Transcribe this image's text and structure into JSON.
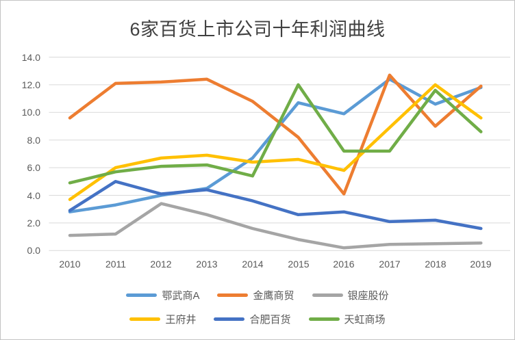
{
  "chart_data": {
    "type": "line",
    "title": "6家百货上市公司十年利润曲线",
    "categories": [
      "2010",
      "2011",
      "2012",
      "2013",
      "2014",
      "2015",
      "2016",
      "2017",
      "2018",
      "2019"
    ],
    "series": [
      {
        "name": "鄂武商A",
        "color": "#5B9BD5",
        "values": [
          2.8,
          3.3,
          4.0,
          4.5,
          6.7,
          10.7,
          9.9,
          12.4,
          10.6,
          11.8
        ]
      },
      {
        "name": "金鹰商贸",
        "color": "#ED7D31",
        "values": [
          9.6,
          12.1,
          12.2,
          12.4,
          10.8,
          8.2,
          4.1,
          12.7,
          9.0,
          11.9
        ]
      },
      {
        "name": "银座股份",
        "color": "#A5A5A5",
        "values": [
          1.1,
          1.2,
          3.4,
          2.6,
          1.6,
          0.8,
          0.2,
          0.45,
          0.5,
          0.55
        ]
      },
      {
        "name": "王府井",
        "color": "#FFC000",
        "values": [
          3.7,
          6.0,
          6.7,
          6.9,
          6.4,
          6.6,
          5.8,
          8.9,
          12.0,
          9.6
        ]
      },
      {
        "name": "合肥百货",
        "color": "#4472C4",
        "values": [
          2.9,
          5.0,
          4.1,
          4.4,
          3.6,
          2.6,
          2.8,
          2.1,
          2.2,
          1.6
        ]
      },
      {
        "name": "天虹商场",
        "color": "#70AD47",
        "values": [
          4.9,
          5.7,
          6.1,
          6.2,
          5.4,
          12.0,
          7.2,
          7.2,
          11.6,
          8.6
        ]
      }
    ],
    "y_ticks": [
      "0.0",
      "2.0",
      "4.0",
      "6.0",
      "8.0",
      "10.0",
      "12.0",
      "14.0"
    ],
    "ylim": [
      0,
      14
    ],
    "xlabel": "",
    "ylabel": "",
    "grid": true,
    "gridline_color": "#D9D9D9",
    "legend_position": "bottom"
  }
}
